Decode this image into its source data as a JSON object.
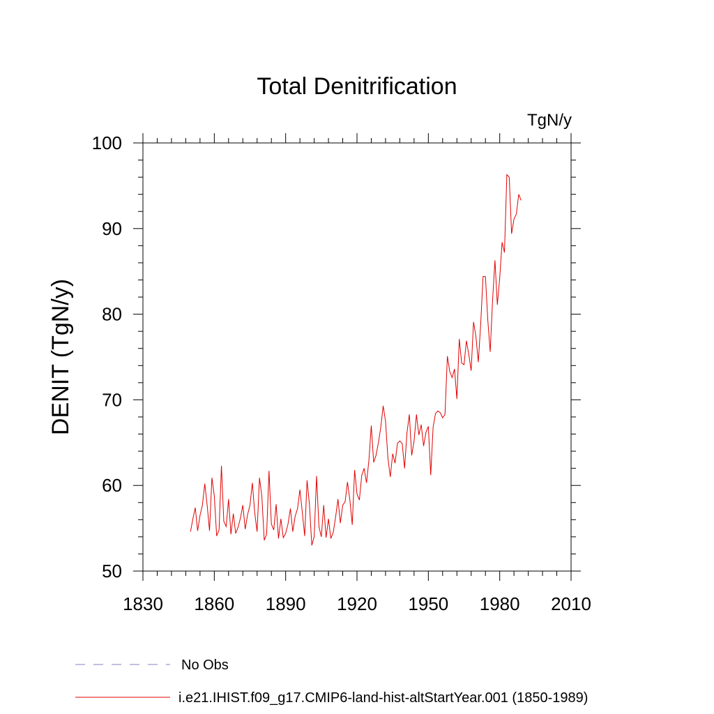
{
  "chart_data": {
    "type": "line",
    "title": "Total Denitrification",
    "units": "TgN/y",
    "ylabel": "DENIT  (TgN/y)",
    "xlabel": "",
    "xlim": [
      1830,
      2010
    ],
    "ylim": [
      50,
      100
    ],
    "x_ticks": [
      1830,
      1860,
      1890,
      1920,
      1950,
      1980,
      2010
    ],
    "y_ticks": [
      50,
      60,
      70,
      80,
      90,
      100
    ],
    "grid": false,
    "legend_position": "bottom",
    "legend": [
      {
        "name": "No Obs",
        "color": "#8080c0",
        "style": "dashed"
      },
      {
        "name": "i.e21.IHIST.f09_g17.CMIP6-land-hist-altStartYear.001 (1850-1989)",
        "color": "#e00000",
        "style": "solid"
      }
    ],
    "series": [
      {
        "name": "i.e21.IHIST.f09_g17.CMIP6-land-hist-altStartYear.001 (1850-1989)",
        "color": "#e00000",
        "x_start": 1850,
        "x_step": 1,
        "values": [
          54.6,
          56.1,
          57.4,
          54.7,
          56.5,
          57.7,
          60.2,
          57.7,
          54.7,
          60.9,
          58.8,
          54.1,
          54.8,
          62.3,
          55.8,
          55.2,
          58.4,
          54.3,
          56.7,
          54.4,
          55.1,
          56.2,
          57.7,
          54.9,
          56.6,
          57.7,
          60.3,
          56.8,
          54.6,
          60.9,
          58.7,
          53.6,
          54.3,
          61.7,
          55.5,
          54.8,
          57.8,
          53.8,
          56.1,
          53.9,
          54.4,
          55.5,
          57.3,
          54.6,
          56.4,
          57.3,
          59.5,
          56.9,
          54.1,
          60.6,
          57.8,
          53.0,
          54.0,
          61.1,
          55.2,
          54.0,
          57.7,
          53.9,
          56.1,
          53.8,
          54.5,
          56.3,
          58.4,
          55.6,
          57.7,
          58.1,
          60.4,
          58.3,
          55.4,
          61.8,
          59.0,
          58.3,
          61.2,
          62.0,
          60.3,
          62.9,
          67.0,
          62.7,
          63.5,
          65.0,
          66.8,
          69.3,
          67.5,
          63.2,
          61.0,
          63.7,
          62.6,
          64.9,
          65.2,
          64.9,
          62.0,
          66.1,
          68.3,
          63.5,
          65.2,
          68.3,
          65.9,
          67.1,
          64.6,
          66.2,
          66.9,
          61.2,
          66.8,
          68.4,
          68.7,
          68.5,
          67.9,
          68.3,
          75.1,
          73.3,
          72.6,
          73.6,
          70.1,
          77.1,
          74.3,
          74.1,
          76.9,
          75.3,
          73.4,
          79.1,
          77.4,
          74.4,
          78.8,
          84.4,
          84.4,
          79.3,
          75.6,
          81.6,
          86.3,
          81.1,
          84.2,
          88.4,
          87.2,
          96.3,
          96.0,
          89.4,
          91.1,
          91.7,
          94.0,
          93.3
        ]
      }
    ]
  }
}
